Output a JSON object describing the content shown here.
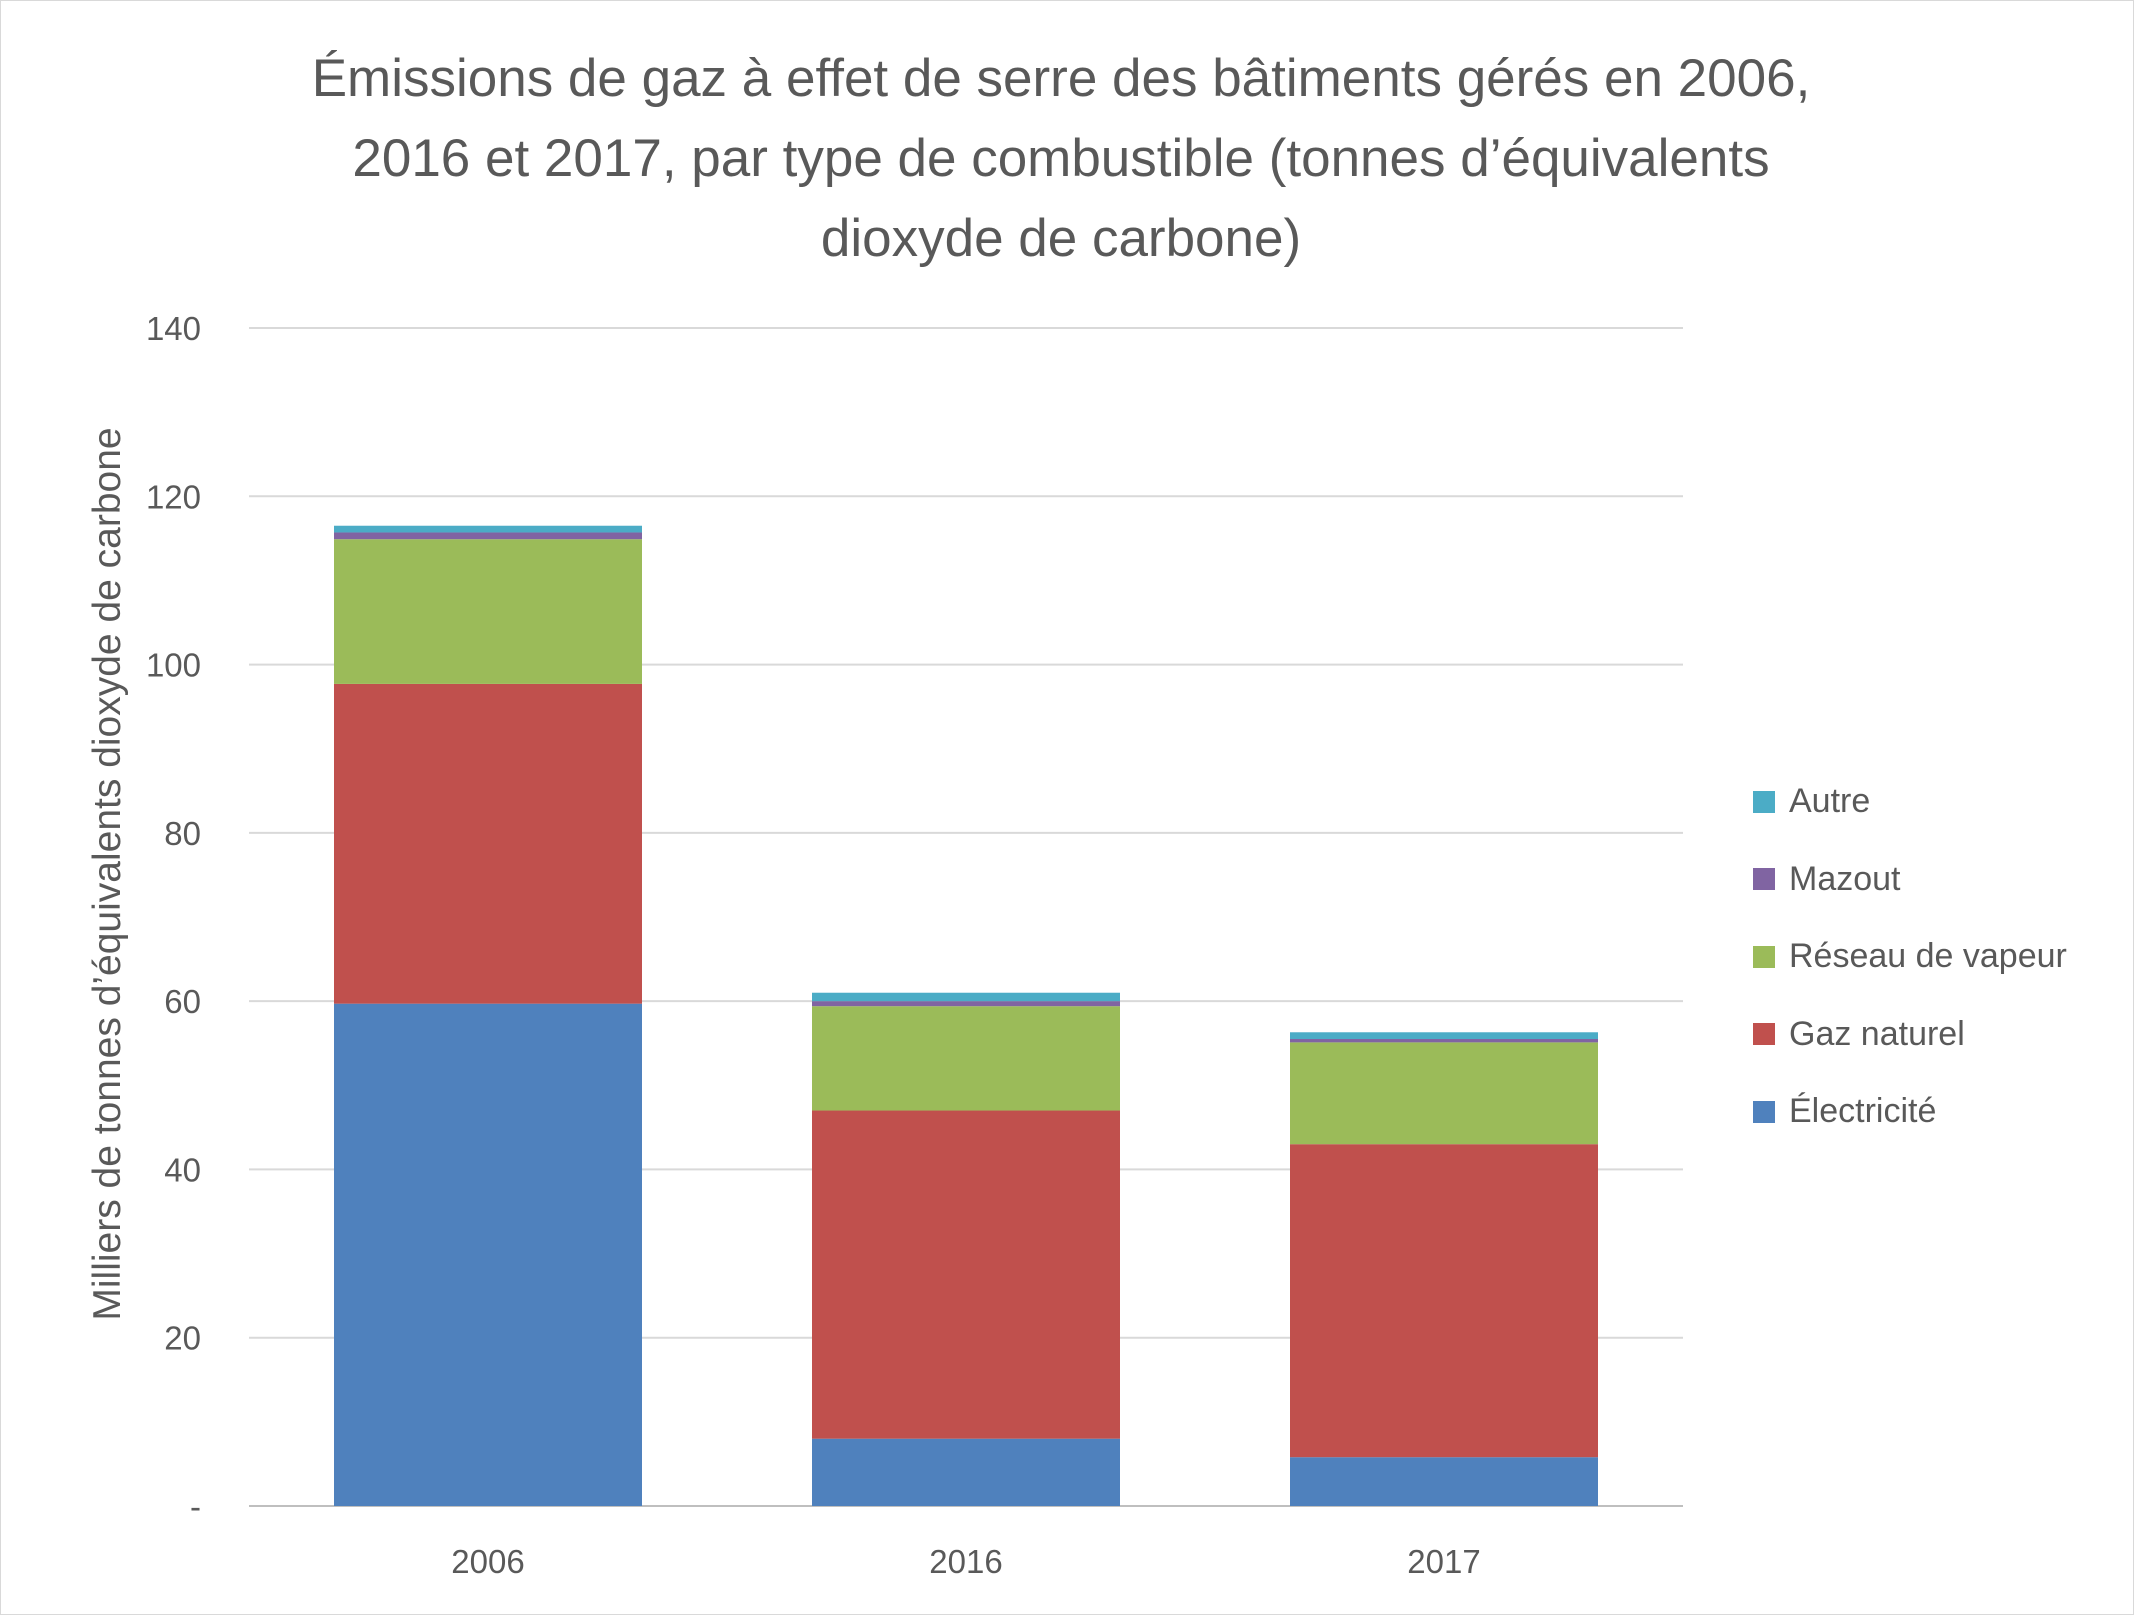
{
  "chart_data": {
    "type": "bar",
    "stacked": true,
    "title_lines": [
      "Émissions de gaz à effet de serre des bâtiments gérés en 2006,",
      "2016 et 2017, par type de combustible (tonnes d’équivalents",
      "dioxyde de carbone)"
    ],
    "title": "Émissions de gaz à effet de serre des bâtiments gérés en 2006, 2016 et 2017, par type de combustible (tonnes d’équivalents dioxyde de carbone)",
    "xlabel": "",
    "ylabel": "Milliers de tonnes d’équivalents dioxyde de carbone",
    "categories": [
      "2006",
      "2016",
      "2017"
    ],
    "ylim": [
      0,
      140
    ],
    "yticks": [
      0,
      20,
      40,
      60,
      80,
      100,
      120,
      140
    ],
    "ytick_labels": [
      "-",
      "20",
      "40",
      "60",
      "80",
      "100",
      "120",
      "140"
    ],
    "grid": true,
    "legend_position": "right",
    "series": [
      {
        "name": "Électricité",
        "color": "#4f81bd",
        "values": [
          59.7,
          8.0,
          5.8
        ]
      },
      {
        "name": "Gaz naturel",
        "color": "#c0504d",
        "values": [
          38.0,
          39.0,
          37.2
        ]
      },
      {
        "name": "Réseau de vapeur",
        "color": "#9bbb59",
        "values": [
          17.2,
          12.4,
          12.1
        ]
      },
      {
        "name": "Mazout",
        "color": "#8064a2",
        "values": [
          0.8,
          0.6,
          0.4
        ]
      },
      {
        "name": "Autre",
        "color": "#4bacc6",
        "values": [
          0.8,
          1.0,
          0.8
        ]
      }
    ]
  }
}
